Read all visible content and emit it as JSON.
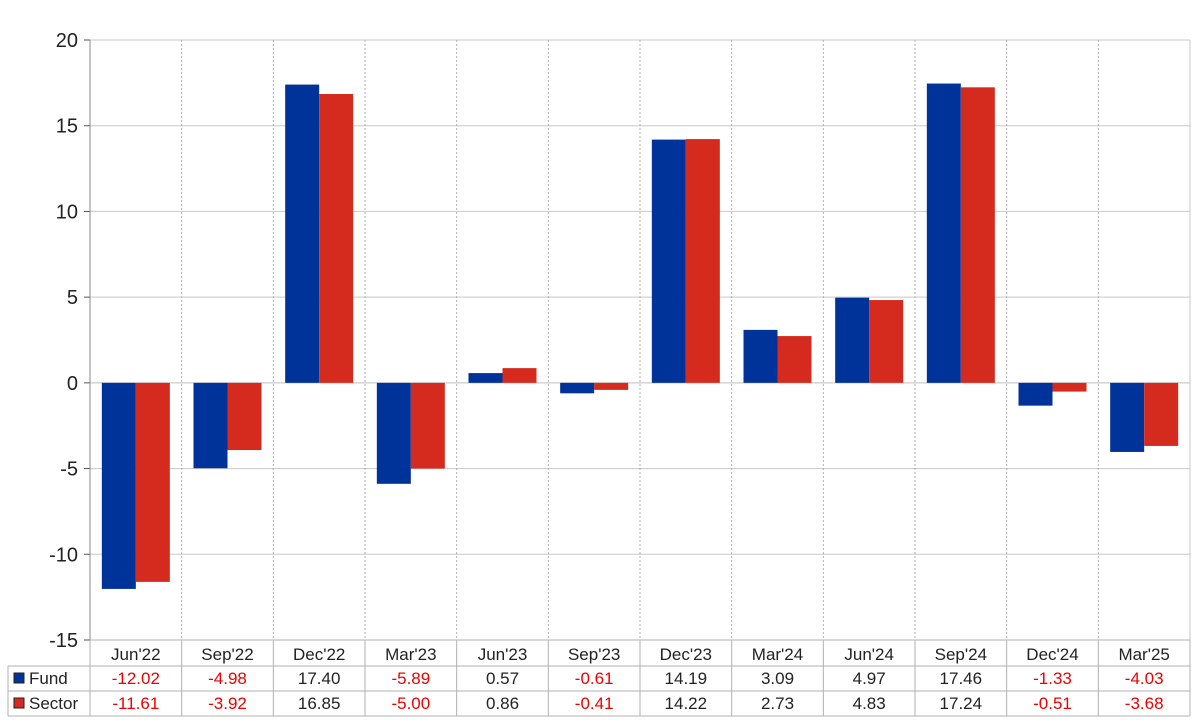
{
  "chart_data": {
    "type": "bar",
    "categories": [
      "Jun'22",
      "Sep'22",
      "Dec'22",
      "Mar'23",
      "Jun'23",
      "Sep'23",
      "Dec'23",
      "Mar'24",
      "Jun'24",
      "Sep'24",
      "Dec'24",
      "Mar'25"
    ],
    "series": [
      {
        "name": "Fund",
        "color": "#003399",
        "values": [
          -12.02,
          -4.98,
          17.4,
          -5.89,
          0.57,
          -0.61,
          14.19,
          3.09,
          4.97,
          17.46,
          -1.33,
          -4.03
        ],
        "labels": [
          "-12.02",
          "-4.98",
          "17.40",
          "-5.89",
          "0.57",
          "-0.61",
          "14.19",
          "3.09",
          "4.97",
          "17.46",
          "-1.33",
          "-4.03"
        ]
      },
      {
        "name": "Sector",
        "color": "#d52b1e",
        "values": [
          -11.61,
          -3.92,
          16.85,
          -5.0,
          0.86,
          -0.41,
          14.22,
          2.73,
          4.83,
          17.24,
          -0.51,
          -3.68
        ],
        "labels": [
          "-11.61",
          "-3.92",
          "16.85",
          "-5.00",
          "0.86",
          "-0.41",
          "14.22",
          "2.73",
          "4.83",
          "17.24",
          "-0.51",
          "-3.68"
        ]
      }
    ],
    "ylim": [
      -15,
      20
    ],
    "yticks": [
      -15,
      -10,
      -5,
      0,
      5,
      10,
      15,
      20
    ],
    "ytick_labels": [
      "-15",
      "-10",
      "-5",
      "0",
      "5",
      "10",
      "15",
      "20"
    ],
    "title": "",
    "xlabel": "",
    "ylabel": "",
    "grid": true,
    "legend": "data table below chart",
    "negative_value_color": "#ee0000",
    "positive_value_color": "#222222"
  }
}
